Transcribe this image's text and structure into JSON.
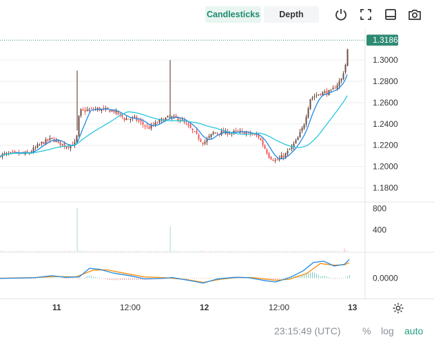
{
  "toolbar": {
    "tabs": [
      {
        "label": "Candlesticks",
        "active": true
      },
      {
        "label": "Depth",
        "active": false
      }
    ],
    "icons": [
      "power-icon",
      "fullscreen-icon",
      "panel-toggle-icon",
      "camera-icon"
    ]
  },
  "colors": {
    "up": "#26a69a",
    "down": "#ef5350",
    "candle": "#6d4c41",
    "ma_fast": "#1e88e5",
    "ma_slow": "#26c6da",
    "macd": "#1e88e5",
    "signal": "#fb8c00",
    "price_tag": "#2e8b73",
    "grid": "#eeeeee"
  },
  "chart_data": [
    {
      "type": "candlestick",
      "price_axis": {
        "ticks": [
          "1.3000",
          "1.2800",
          "1.2600",
          "1.2400",
          "1.2200",
          "1.2000",
          "1.1800"
        ],
        "tick_values": [
          1.3,
          1.28,
          1.26,
          1.24,
          1.22,
          1.2,
          1.18
        ],
        "ylim": [
          1.17,
          1.3265
        ]
      },
      "last_price": "1.3186",
      "last_price_value": 1.3186,
      "x_labels": [
        "11",
        "12:00",
        "12",
        "12:00",
        "13"
      ],
      "close_path": [
        [
          0,
          1.211
        ],
        [
          20,
          1.212
        ],
        [
          40,
          1.212
        ],
        [
          60,
          1.222
        ],
        [
          75,
          1.226
        ],
        [
          95,
          1.219
        ],
        [
          110,
          1.222
        ],
        [
          115,
          1.252
        ],
        [
          140,
          1.254
        ],
        [
          165,
          1.252
        ],
        [
          180,
          1.245
        ],
        [
          195,
          1.245
        ],
        [
          215,
          1.236
        ],
        [
          235,
          1.244
        ],
        [
          245,
          1.246
        ],
        [
          260,
          1.245
        ],
        [
          275,
          1.236
        ],
        [
          295,
          1.222
        ],
        [
          310,
          1.232
        ],
        [
          330,
          1.232
        ],
        [
          355,
          1.232
        ],
        [
          375,
          1.228
        ],
        [
          390,
          1.21
        ],
        [
          400,
          1.205
        ],
        [
          415,
          1.212
        ],
        [
          430,
          1.224
        ],
        [
          440,
          1.238
        ],
        [
          450,
          1.264
        ],
        [
          465,
          1.269
        ],
        [
          480,
          1.27
        ],
        [
          495,
          1.282
        ],
        [
          503,
          1.3
        ],
        [
          505,
          1.3186
        ]
      ],
      "spikes": [
        {
          "x": 112,
          "high": 1.29
        },
        {
          "x": 247,
          "high": 1.2999
        },
        {
          "x": 505,
          "high": 1.3186
        }
      ]
    },
    {
      "type": "bar",
      "name": "Volume",
      "axis_ticks": [
        "800",
        "400"
      ],
      "tick_values": [
        800,
        400
      ],
      "ylim": [
        0,
        830
      ],
      "spikes": [
        {
          "x": 112,
          "value": 800
        },
        {
          "x": 247,
          "value": 470
        },
        {
          "x": 500,
          "value": 60
        }
      ],
      "baseline_value": 12
    },
    {
      "type": "line",
      "name": "MACD",
      "axis_ticks": [
        "0.0000"
      ],
      "zero_value": 0.0,
      "ylim": [
        -0.01,
        0.012
      ],
      "macd": [
        [
          0,
          -0.0001
        ],
        [
          50,
          0.0002
        ],
        [
          75,
          0.0012
        ],
        [
          95,
          0.0004
        ],
        [
          115,
          0.0006
        ],
        [
          130,
          0.0047
        ],
        [
          145,
          0.0042
        ],
        [
          165,
          0.0024
        ],
        [
          190,
          0.0011
        ],
        [
          210,
          -0.0003
        ],
        [
          235,
          -0.0001
        ],
        [
          250,
          0.0003
        ],
        [
          275,
          -0.0011
        ],
        [
          295,
          -0.0023
        ],
        [
          315,
          -0.0004
        ],
        [
          340,
          0.0004
        ],
        [
          360,
          0.0003
        ],
        [
          385,
          -0.0012
        ],
        [
          400,
          -0.0018
        ],
        [
          420,
          0.0002
        ],
        [
          440,
          0.0035
        ],
        [
          455,
          0.0075
        ],
        [
          470,
          0.0081
        ],
        [
          485,
          0.0058
        ],
        [
          500,
          0.0066
        ],
        [
          507,
          0.0089
        ]
      ],
      "signal": [
        [
          0,
          0.0
        ],
        [
          50,
          0.0003
        ],
        [
          80,
          0.0008
        ],
        [
          110,
          0.0006
        ],
        [
          135,
          0.0038
        ],
        [
          155,
          0.004
        ],
        [
          180,
          0.0024
        ],
        [
          210,
          0.0006
        ],
        [
          240,
          0.0002
        ],
        [
          270,
          -0.0006
        ],
        [
          295,
          -0.002
        ],
        [
          320,
          -0.0005
        ],
        [
          345,
          0.0004
        ],
        [
          370,
          0.0002
        ],
        [
          400,
          -0.001
        ],
        [
          420,
          -0.0005
        ],
        [
          445,
          0.0022
        ],
        [
          465,
          0.007
        ],
        [
          485,
          0.0062
        ],
        [
          500,
          0.0064
        ],
        [
          507,
          0.0074
        ]
      ]
    }
  ],
  "footer": {
    "time": "23:15:49 (UTC)",
    "percent": "%",
    "log": "log",
    "auto": "auto"
  }
}
